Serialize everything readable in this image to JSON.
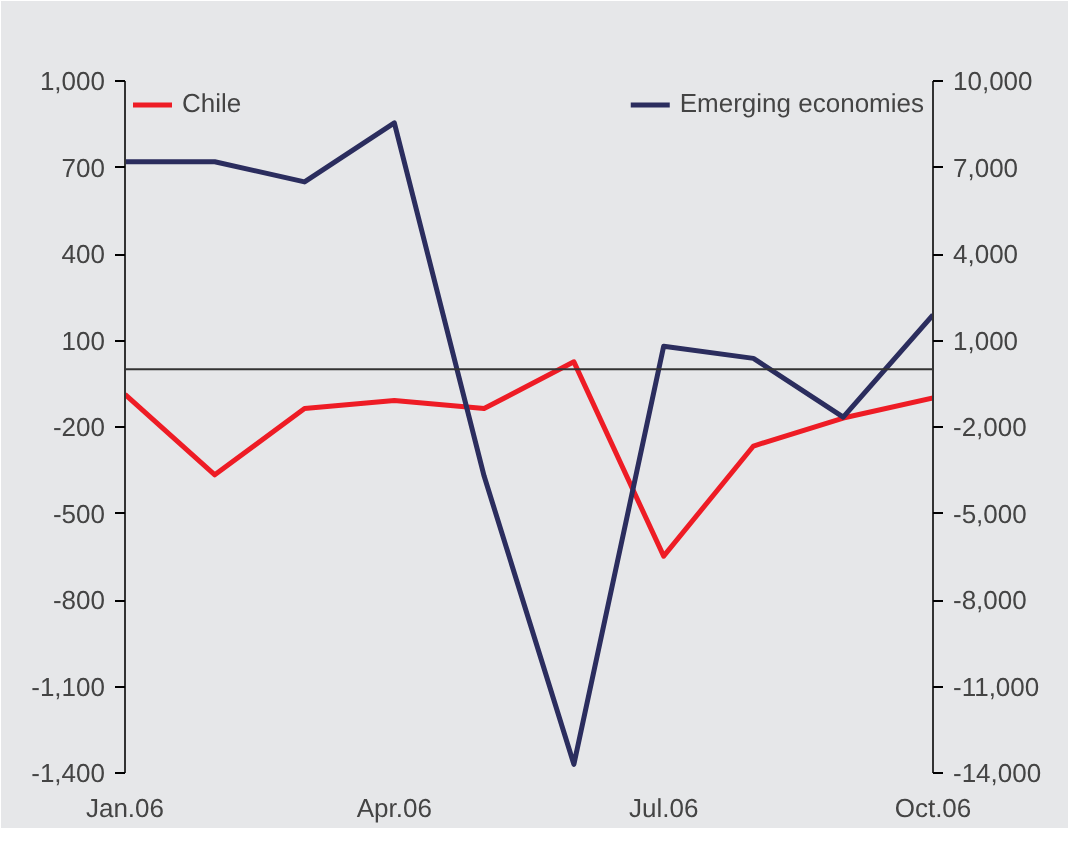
{
  "chart_data": {
    "type": "line",
    "categories": [
      "Jan.06",
      null,
      null,
      "Apr.06",
      null,
      null,
      "Jul.06",
      null,
      null,
      "Oct.06"
    ],
    "series": [
      {
        "name": "Chile",
        "color": "#ee1c25",
        "values": [
          -87,
          -366,
          -136,
          -108,
          -136,
          26,
          -648,
          -266,
          -169,
          -99
        ]
      },
      {
        "name": "Emerging economies",
        "color": "#2b2d5e",
        "axis": "y2",
        "values": [
          7200,
          7200,
          6500,
          8550,
          -3700,
          -13700,
          800,
          380,
          -1660,
          1890
        ]
      }
    ],
    "ylim": [
      -1400,
      1000
    ],
    "yticks": [
      {
        "value": -1400,
        "label": "-1,400"
      },
      {
        "value": -1100,
        "label": "-1,100"
      },
      -800,
      -500,
      -200,
      100,
      400,
      700,
      {
        "value": 1000,
        "label": "1,000"
      }
    ],
    "y2lim": [
      -14000,
      10000
    ],
    "y2ticks": [
      {
        "value": -14000,
        "label": "-14,000"
      },
      {
        "value": -11000,
        "label": "-11,000"
      },
      {
        "value": -8000,
        "label": "-8,000"
      },
      {
        "value": -5000,
        "label": "-5,000"
      },
      {
        "value": -2000,
        "label": "-2,000"
      },
      {
        "value": 1000,
        "label": "1,000"
      },
      {
        "value": 4000,
        "label": "4,000"
      },
      {
        "value": 7000,
        "label": "7,000"
      },
      {
        "value": 10000,
        "label": "10,000"
      }
    ],
    "ref_lines": [
      {
        "axis": "y",
        "value": 0,
        "color": "#333333"
      }
    ],
    "legend": "top",
    "marker": "none",
    "line_style": "solid"
  }
}
